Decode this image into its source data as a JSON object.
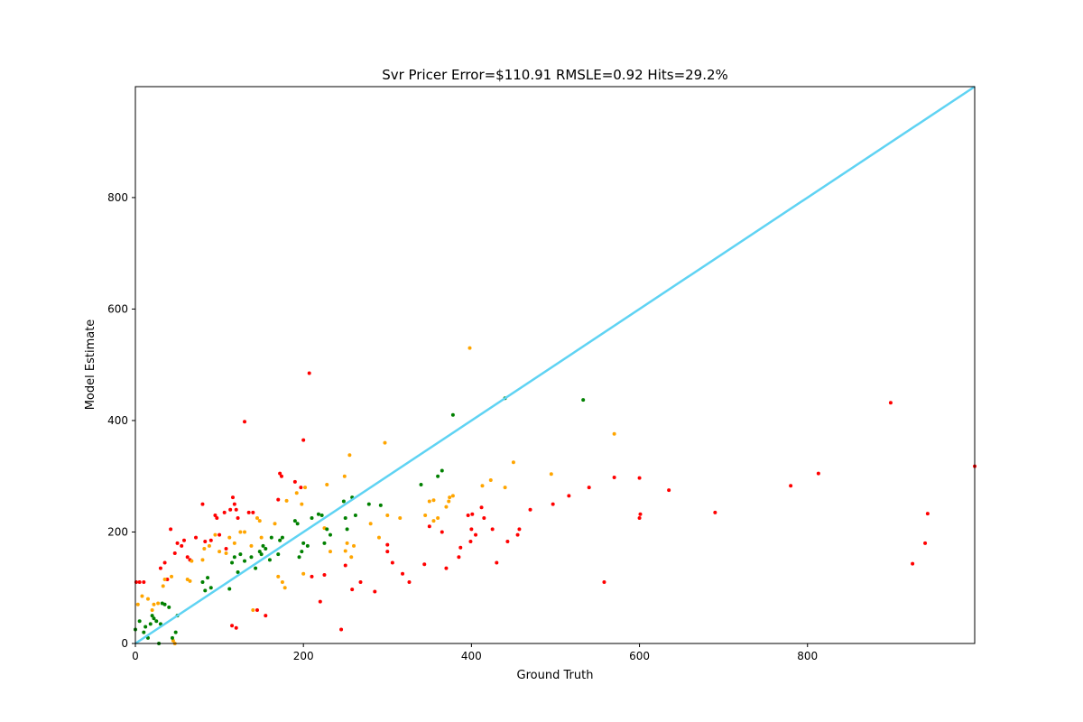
{
  "chart_data": {
    "type": "scatter",
    "title": "Svr Pricer Error=$110.91 RMSLE=0.92 Hits=29.2%",
    "xlabel": "Ground Truth",
    "ylabel": "Model Estimate",
    "xlim": [
      0,
      999
    ],
    "ylim": [
      0,
      999
    ],
    "xticks": [
      0,
      200,
      400,
      600,
      800
    ],
    "yticks": [
      0,
      200,
      400,
      600,
      800
    ],
    "grid": false,
    "reference_line": {
      "from": [
        0,
        0
      ],
      "to": [
        999,
        999
      ],
      "color": "#5fd3f3"
    },
    "series": [
      {
        "color": "#ff0000",
        "points": [
          [
            1,
            110
          ],
          [
            5,
            110
          ],
          [
            10,
            110
          ],
          [
            30,
            135
          ],
          [
            35,
            145
          ],
          [
            38,
            115
          ],
          [
            42,
            205
          ],
          [
            47,
            162
          ],
          [
            50,
            180
          ],
          [
            55,
            175
          ],
          [
            58,
            185
          ],
          [
            62,
            155
          ],
          [
            65,
            150
          ],
          [
            72,
            190
          ],
          [
            80,
            250
          ],
          [
            83,
            183
          ],
          [
            90,
            185
          ],
          [
            95,
            230
          ],
          [
            97,
            225
          ],
          [
            100,
            195
          ],
          [
            106,
            235
          ],
          [
            108,
            170
          ],
          [
            113,
            240
          ],
          [
            116,
            262
          ],
          [
            118,
            250
          ],
          [
            120,
            240
          ],
          [
            122,
            225
          ],
          [
            130,
            398
          ],
          [
            135,
            235
          ],
          [
            140,
            235
          ],
          [
            145,
            60
          ],
          [
            155,
            50
          ],
          [
            115,
            32
          ],
          [
            120,
            28
          ],
          [
            170,
            258
          ],
          [
            172,
            305
          ],
          [
            174,
            300
          ],
          [
            190,
            290
          ],
          [
            197,
            280
          ],
          [
            200,
            365
          ],
          [
            207,
            485
          ],
          [
            210,
            120
          ],
          [
            220,
            75
          ],
          [
            225,
            123
          ],
          [
            245,
            25
          ],
          [
            250,
            140
          ],
          [
            258,
            97
          ],
          [
            268,
            110
          ],
          [
            285,
            93
          ],
          [
            300,
            177
          ],
          [
            300,
            165
          ],
          [
            306,
            145
          ],
          [
            318,
            125
          ],
          [
            326,
            110
          ],
          [
            344,
            142
          ],
          [
            350,
            210
          ],
          [
            365,
            200
          ],
          [
            370,
            135
          ],
          [
            385,
            155
          ],
          [
            387,
            172
          ],
          [
            396,
            230
          ],
          [
            399,
            183
          ],
          [
            400,
            205
          ],
          [
            401,
            232
          ],
          [
            405,
            195
          ],
          [
            412,
            244
          ],
          [
            415,
            225
          ],
          [
            425,
            205
          ],
          [
            430,
            145
          ],
          [
            443,
            183
          ],
          [
            455,
            195
          ],
          [
            457,
            205
          ],
          [
            470,
            240
          ],
          [
            497,
            250
          ],
          [
            516,
            265
          ],
          [
            540,
            280
          ],
          [
            558,
            110
          ],
          [
            570,
            298
          ],
          [
            600,
            297
          ],
          [
            600,
            225
          ],
          [
            601,
            232
          ],
          [
            635,
            275
          ],
          [
            690,
            235
          ],
          [
            780,
            283
          ],
          [
            813,
            305
          ],
          [
            899,
            432
          ],
          [
            925,
            143
          ],
          [
            940,
            180
          ],
          [
            943,
            233
          ],
          [
            999,
            318
          ]
        ]
      },
      {
        "color": "#ffa500",
        "points": [
          [
            3,
            70
          ],
          [
            8,
            85
          ],
          [
            15,
            80
          ],
          [
            20,
            60
          ],
          [
            22,
            70
          ],
          [
            27,
            72
          ],
          [
            33,
            103
          ],
          [
            35,
            115
          ],
          [
            43,
            120
          ],
          [
            45,
            5
          ],
          [
            47,
            0
          ],
          [
            62,
            115
          ],
          [
            65,
            112
          ],
          [
            67,
            148
          ],
          [
            80,
            150
          ],
          [
            82,
            170
          ],
          [
            88,
            175
          ],
          [
            95,
            195
          ],
          [
            100,
            165
          ],
          [
            108,
            162
          ],
          [
            112,
            190
          ],
          [
            118,
            180
          ],
          [
            125,
            200
          ],
          [
            130,
            200
          ],
          [
            138,
            175
          ],
          [
            140,
            60
          ],
          [
            145,
            225
          ],
          [
            148,
            220
          ],
          [
            150,
            190
          ],
          [
            166,
            215
          ],
          [
            170,
            120
          ],
          [
            175,
            110
          ],
          [
            178,
            100
          ],
          [
            180,
            256
          ],
          [
            192,
            270
          ],
          [
            198,
            250
          ],
          [
            200,
            125
          ],
          [
            202,
            280
          ],
          [
            225,
            207
          ],
          [
            228,
            285
          ],
          [
            232,
            165
          ],
          [
            249,
            300
          ],
          [
            250,
            166
          ],
          [
            252,
            180
          ],
          [
            255,
            338
          ],
          [
            257,
            155
          ],
          [
            260,
            175
          ],
          [
            280,
            215
          ],
          [
            290,
            190
          ],
          [
            297,
            360
          ],
          [
            300,
            230
          ],
          [
            315,
            225
          ],
          [
            345,
            230
          ],
          [
            350,
            255
          ],
          [
            355,
            257
          ],
          [
            355,
            220
          ],
          [
            360,
            225
          ],
          [
            370,
            245
          ],
          [
            373,
            255
          ],
          [
            374,
            262
          ],
          [
            378,
            265
          ],
          [
            398,
            530
          ],
          [
            413,
            283
          ],
          [
            423,
            293
          ],
          [
            440,
            280
          ],
          [
            450,
            325
          ],
          [
            495,
            304
          ],
          [
            570,
            376
          ]
        ]
      },
      {
        "color": "#008000",
        "points": [
          [
            0,
            25
          ],
          [
            5,
            40
          ],
          [
            10,
            20
          ],
          [
            12,
            30
          ],
          [
            15,
            10
          ],
          [
            18,
            35
          ],
          [
            20,
            50
          ],
          [
            22,
            45
          ],
          [
            25,
            40
          ],
          [
            28,
            0
          ],
          [
            30,
            35
          ],
          [
            32,
            72
          ],
          [
            35,
            70
          ],
          [
            40,
            65
          ],
          [
            44,
            10
          ],
          [
            48,
            20
          ],
          [
            50,
            50
          ],
          [
            80,
            110
          ],
          [
            83,
            95
          ],
          [
            86,
            118
          ],
          [
            90,
            100
          ],
          [
            112,
            98
          ],
          [
            115,
            145
          ],
          [
            118,
            155
          ],
          [
            122,
            128
          ],
          [
            125,
            160
          ],
          [
            130,
            148
          ],
          [
            138,
            155
          ],
          [
            143,
            135
          ],
          [
            148,
            165
          ],
          [
            150,
            160
          ],
          [
            152,
            175
          ],
          [
            155,
            170
          ],
          [
            160,
            150
          ],
          [
            162,
            190
          ],
          [
            170,
            160
          ],
          [
            172,
            185
          ],
          [
            175,
            190
          ],
          [
            190,
            220
          ],
          [
            193,
            215
          ],
          [
            195,
            155
          ],
          [
            198,
            165
          ],
          [
            200,
            180
          ],
          [
            205,
            175
          ],
          [
            210,
            225
          ],
          [
            218,
            232
          ],
          [
            222,
            230
          ],
          [
            225,
            180
          ],
          [
            228,
            205
          ],
          [
            232,
            195
          ],
          [
            248,
            255
          ],
          [
            250,
            225
          ],
          [
            252,
            205
          ],
          [
            258,
            262
          ],
          [
            262,
            230
          ],
          [
            278,
            250
          ],
          [
            292,
            248
          ],
          [
            340,
            285
          ],
          [
            360,
            300
          ],
          [
            365,
            310
          ],
          [
            378,
            410
          ],
          [
            440,
            440
          ],
          [
            533,
            437
          ]
        ]
      }
    ]
  }
}
